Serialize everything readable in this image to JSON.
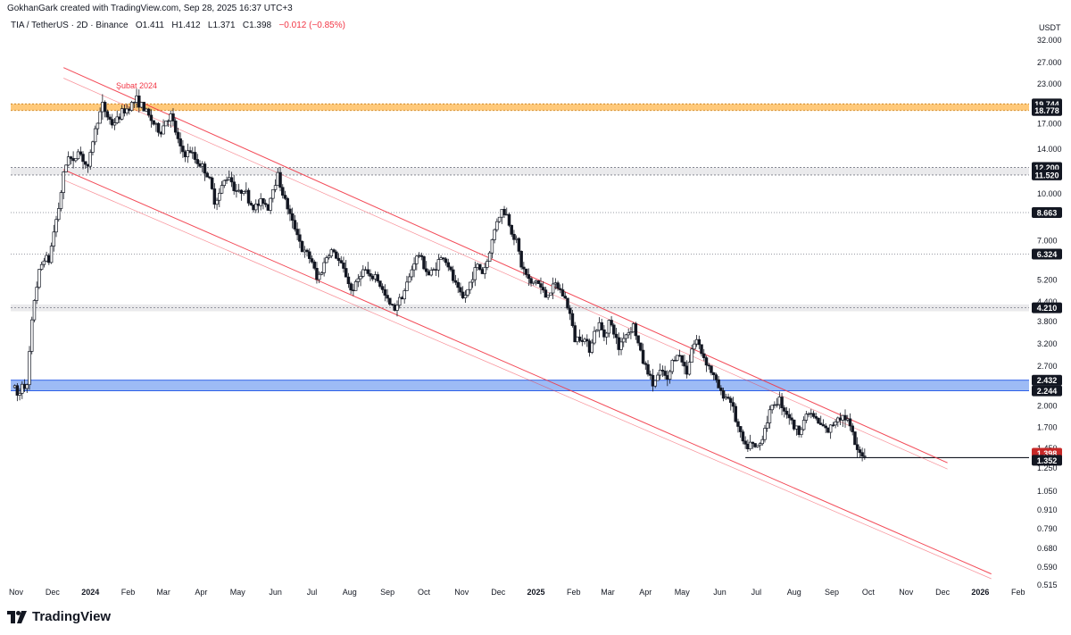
{
  "header": {
    "credit": "GokhanGark created with TradingView.com, Sep 28, 2025 16:37 UTC+3",
    "symbol_line": "TIA / TetherUS · 2D · Binance",
    "open_label": "O",
    "open": "1.411",
    "high_label": "H",
    "high": "1.412",
    "low_label": "L",
    "low": "1.371",
    "close_label": "C",
    "close": "1.398",
    "change": "−0.012 (−0.85%)",
    "change_color": "#f23645"
  },
  "footer": {
    "brand": "TradingView"
  },
  "colors": {
    "up": "#131722",
    "down": "#131722",
    "channel": "#f23645",
    "orange_zone": "#ffb74d",
    "blue_zone": "#5b8def",
    "grey_zone": "#d9d9dc",
    "last_price": "#c62828",
    "level_badge": "#131722"
  },
  "chart_data": {
    "type": "candlestick",
    "symbol": "TIA / TetherUS",
    "timeframe": "2D",
    "exchange": "Binance",
    "price_scale": "log",
    "y_unit": "USDT",
    "ylim": [
      0.515,
      32.0
    ],
    "xlim": [
      "2023-11-01",
      "2026-02-10"
    ],
    "y_ticks": [
      32.0,
      27.0,
      23.0,
      17.0,
      14.0,
      10.0,
      7.0,
      5.2,
      4.4,
      3.8,
      3.2,
      2.7,
      2.0,
      1.7,
      1.45,
      1.25,
      1.05,
      0.91,
      0.79,
      0.68,
      0.59,
      0.515
    ],
    "y_tick_labels": [
      "32.000",
      "27.000",
      "23.000",
      "17.000",
      "14.000",
      "10.000",
      "7.000",
      "5.200",
      "4.400",
      "3.800",
      "3.200",
      "2.700",
      "2.000",
      "1.700",
      "1.450",
      "1.250",
      "1.050",
      "0.910",
      "0.790",
      "0.680",
      "0.590",
      "0.515"
    ],
    "x_ticks": [
      {
        "date": "2023-11-01",
        "label": "Nov",
        "bold": false
      },
      {
        "date": "2023-12-01",
        "label": "Dec",
        "bold": false
      },
      {
        "date": "2024-01-01",
        "label": "2024",
        "bold": true
      },
      {
        "date": "2024-02-01",
        "label": "Feb",
        "bold": false
      },
      {
        "date": "2024-03-01",
        "label": "Mar",
        "bold": false
      },
      {
        "date": "2024-04-01",
        "label": "Apr",
        "bold": false
      },
      {
        "date": "2024-05-01",
        "label": "May",
        "bold": false
      },
      {
        "date": "2024-06-01",
        "label": "Jun",
        "bold": false
      },
      {
        "date": "2024-07-01",
        "label": "Jul",
        "bold": false
      },
      {
        "date": "2024-08-01",
        "label": "Aug",
        "bold": false
      },
      {
        "date": "2024-09-01",
        "label": "Sep",
        "bold": false
      },
      {
        "date": "2024-10-01",
        "label": "Oct",
        "bold": false
      },
      {
        "date": "2024-11-01",
        "label": "Nov",
        "bold": false
      },
      {
        "date": "2024-12-01",
        "label": "Dec",
        "bold": false
      },
      {
        "date": "2025-01-01",
        "label": "2025",
        "bold": true
      },
      {
        "date": "2025-02-01",
        "label": "Feb",
        "bold": false
      },
      {
        "date": "2025-03-01",
        "label": "Mar",
        "bold": false
      },
      {
        "date": "2025-04-01",
        "label": "Apr",
        "bold": false
      },
      {
        "date": "2025-05-01",
        "label": "May",
        "bold": false
      },
      {
        "date": "2025-06-01",
        "label": "Jun",
        "bold": false
      },
      {
        "date": "2025-07-01",
        "label": "Jul",
        "bold": false
      },
      {
        "date": "2025-08-01",
        "label": "Aug",
        "bold": false
      },
      {
        "date": "2025-09-01",
        "label": "Sep",
        "bold": false
      },
      {
        "date": "2025-10-01",
        "label": "Oct",
        "bold": false
      },
      {
        "date": "2025-11-01",
        "label": "Nov",
        "bold": false
      },
      {
        "date": "2025-12-01",
        "label": "Dec",
        "bold": false
      },
      {
        "date": "2026-01-01",
        "label": "2026",
        "bold": true
      },
      {
        "date": "2026-02-01",
        "label": "Feb",
        "bold": false
      }
    ],
    "path": [
      [
        "2023-10-31",
        2.3
      ],
      [
        "2023-11-03",
        2.1
      ],
      [
        "2023-11-06",
        2.4
      ],
      [
        "2023-11-10",
        2.3
      ],
      [
        "2023-11-13",
        3.4
      ],
      [
        "2023-11-16",
        4.5
      ],
      [
        "2023-11-20",
        5.5
      ],
      [
        "2023-11-24",
        6.2
      ],
      [
        "2023-11-28",
        6.0
      ],
      [
        "2023-12-02",
        7.5
      ],
      [
        "2023-12-06",
        9.0
      ],
      [
        "2023-12-10",
        11.5
      ],
      [
        "2023-12-14",
        13.5
      ],
      [
        "2023-12-18",
        12.5
      ],
      [
        "2023-12-22",
        14.0
      ],
      [
        "2023-12-26",
        13.0
      ],
      [
        "2023-12-30",
        12.0
      ],
      [
        "2024-01-03",
        15.0
      ],
      [
        "2024-01-07",
        17.5
      ],
      [
        "2024-01-11",
        19.5
      ],
      [
        "2024-01-15",
        18.0
      ],
      [
        "2024-01-19",
        17.0
      ],
      [
        "2024-01-23",
        17.5
      ],
      [
        "2024-01-27",
        18.5
      ],
      [
        "2024-01-31",
        19.0
      ],
      [
        "2024-02-04",
        19.8
      ],
      [
        "2024-02-08",
        20.4
      ],
      [
        "2024-02-12",
        19.5
      ],
      [
        "2024-02-16",
        18.5
      ],
      [
        "2024-02-20",
        17.5
      ],
      [
        "2024-02-24",
        16.5
      ],
      [
        "2024-02-28",
        16.0
      ],
      [
        "2024-03-03",
        17.5
      ],
      [
        "2024-03-07",
        18.0
      ],
      [
        "2024-03-11",
        16.0
      ],
      [
        "2024-03-15",
        14.0
      ],
      [
        "2024-03-19",
        13.5
      ],
      [
        "2024-03-23",
        13.8
      ],
      [
        "2024-03-27",
        13.0
      ],
      [
        "2024-03-31",
        12.5
      ],
      [
        "2024-04-04",
        12.0
      ],
      [
        "2024-04-08",
        11.0
      ],
      [
        "2024-04-12",
        9.5
      ],
      [
        "2024-04-16",
        10.0
      ],
      [
        "2024-04-20",
        11.0
      ],
      [
        "2024-04-24",
        11.5
      ],
      [
        "2024-04-28",
        10.5
      ],
      [
        "2024-05-02",
        10.0
      ],
      [
        "2024-05-06",
        10.5
      ],
      [
        "2024-05-10",
        9.5
      ],
      [
        "2024-05-14",
        9.0
      ],
      [
        "2024-05-18",
        9.2
      ],
      [
        "2024-05-22",
        9.5
      ],
      [
        "2024-05-26",
        9.0
      ],
      [
        "2024-05-30",
        10.5
      ],
      [
        "2024-06-03",
        11.5
      ],
      [
        "2024-06-07",
        10.0
      ],
      [
        "2024-06-11",
        9.0
      ],
      [
        "2024-06-15",
        8.0
      ],
      [
        "2024-06-19",
        7.5
      ],
      [
        "2024-06-23",
        6.5
      ],
      [
        "2024-06-27",
        6.3
      ],
      [
        "2024-07-01",
        6.0
      ],
      [
        "2024-07-05",
        5.2
      ],
      [
        "2024-07-09",
        5.6
      ],
      [
        "2024-07-13",
        6.2
      ],
      [
        "2024-07-17",
        6.5
      ],
      [
        "2024-07-21",
        6.2
      ],
      [
        "2024-07-25",
        5.8
      ],
      [
        "2024-07-29",
        5.4
      ],
      [
        "2024-08-02",
        4.8
      ],
      [
        "2024-08-06",
        5.0
      ],
      [
        "2024-08-10",
        5.5
      ],
      [
        "2024-08-14",
        5.6
      ],
      [
        "2024-08-18",
        5.2
      ],
      [
        "2024-08-22",
        5.4
      ],
      [
        "2024-08-26",
        5.0
      ],
      [
        "2024-08-30",
        4.6
      ],
      [
        "2024-09-03",
        4.3
      ],
      [
        "2024-09-07",
        4.2
      ],
      [
        "2024-09-11",
        4.5
      ],
      [
        "2024-09-15",
        4.8
      ],
      [
        "2024-09-19",
        5.3
      ],
      [
        "2024-09-23",
        6.0
      ],
      [
        "2024-09-27",
        6.3
      ],
      [
        "2024-10-01",
        5.8
      ],
      [
        "2024-10-05",
        5.4
      ],
      [
        "2024-10-09",
        5.6
      ],
      [
        "2024-10-13",
        6.0
      ],
      [
        "2024-10-17",
        6.2
      ],
      [
        "2024-10-21",
        5.8
      ],
      [
        "2024-10-25",
        5.2
      ],
      [
        "2024-10-29",
        4.8
      ],
      [
        "2024-11-02",
        4.5
      ],
      [
        "2024-11-06",
        4.8
      ],
      [
        "2024-11-10",
        5.4
      ],
      [
        "2024-11-14",
        5.8
      ],
      [
        "2024-11-18",
        5.5
      ],
      [
        "2024-11-22",
        6.0
      ],
      [
        "2024-11-26",
        7.0
      ],
      [
        "2024-11-30",
        8.2
      ],
      [
        "2024-12-04",
        8.8
      ],
      [
        "2024-12-08",
        8.5
      ],
      [
        "2024-12-12",
        7.5
      ],
      [
        "2024-12-16",
        7.0
      ],
      [
        "2024-12-20",
        5.8
      ],
      [
        "2024-12-24",
        5.4
      ],
      [
        "2024-12-28",
        5.0
      ],
      [
        "2025-01-01",
        5.2
      ],
      [
        "2025-01-05",
        4.9
      ],
      [
        "2025-01-09",
        4.6
      ],
      [
        "2025-01-13",
        4.8
      ],
      [
        "2025-01-17",
        5.0
      ],
      [
        "2025-01-21",
        4.8
      ],
      [
        "2025-01-25",
        4.5
      ],
      [
        "2025-01-29",
        4.0
      ],
      [
        "2025-02-02",
        3.3
      ],
      [
        "2025-02-06",
        3.4
      ],
      [
        "2025-02-10",
        3.3
      ],
      [
        "2025-02-14",
        3.1
      ],
      [
        "2025-02-18",
        3.5
      ],
      [
        "2025-02-22",
        3.7
      ],
      [
        "2025-02-26",
        3.4
      ],
      [
        "2025-03-02",
        3.8
      ],
      [
        "2025-03-06",
        3.5
      ],
      [
        "2025-03-10",
        3.1
      ],
      [
        "2025-03-14",
        3.4
      ],
      [
        "2025-03-18",
        3.5
      ],
      [
        "2025-03-22",
        3.7
      ],
      [
        "2025-03-26",
        3.2
      ],
      [
        "2025-03-30",
        2.8
      ],
      [
        "2025-04-03",
        2.6
      ],
      [
        "2025-04-07",
        2.35
      ],
      [
        "2025-04-11",
        2.5
      ],
      [
        "2025-04-15",
        2.6
      ],
      [
        "2025-04-19",
        2.4
      ],
      [
        "2025-04-23",
        2.8
      ],
      [
        "2025-04-27",
        3.0
      ],
      [
        "2025-05-01",
        2.8
      ],
      [
        "2025-05-05",
        2.6
      ],
      [
        "2025-05-09",
        3.1
      ],
      [
        "2025-05-13",
        3.3
      ],
      [
        "2025-05-17",
        3.0
      ],
      [
        "2025-05-21",
        2.8
      ],
      [
        "2025-05-25",
        2.6
      ],
      [
        "2025-05-29",
        2.4
      ],
      [
        "2025-06-02",
        2.2
      ],
      [
        "2025-06-06",
        2.15
      ],
      [
        "2025-06-10",
        2.1
      ],
      [
        "2025-06-14",
        1.8
      ],
      [
        "2025-06-18",
        1.6
      ],
      [
        "2025-06-22",
        1.45
      ],
      [
        "2025-06-26",
        1.5
      ],
      [
        "2025-06-30",
        1.45
      ],
      [
        "2025-07-04",
        1.5
      ],
      [
        "2025-07-08",
        1.7
      ],
      [
        "2025-07-12",
        1.9
      ],
      [
        "2025-07-16",
        2.05
      ],
      [
        "2025-07-20",
        2.1
      ],
      [
        "2025-07-24",
        1.95
      ],
      [
        "2025-07-28",
        1.85
      ],
      [
        "2025-08-01",
        1.7
      ],
      [
        "2025-08-05",
        1.65
      ],
      [
        "2025-08-09",
        1.8
      ],
      [
        "2025-08-13",
        1.9
      ],
      [
        "2025-08-17",
        1.85
      ],
      [
        "2025-08-21",
        1.75
      ],
      [
        "2025-08-25",
        1.7
      ],
      [
        "2025-08-29",
        1.65
      ],
      [
        "2025-09-02",
        1.75
      ],
      [
        "2025-09-06",
        1.85
      ],
      [
        "2025-09-10",
        1.85
      ],
      [
        "2025-09-14",
        1.8
      ],
      [
        "2025-09-18",
        1.6
      ],
      [
        "2025-09-22",
        1.4
      ],
      [
        "2025-09-26",
        1.39
      ],
      [
        "2025-09-28",
        1.398
      ]
    ],
    "levels": [
      {
        "price": 19.744,
        "label": "19.744",
        "style": "zone_top",
        "zone": "orange"
      },
      {
        "price": 18.778,
        "label": "18.778",
        "style": "zone_bottom",
        "zone": "orange"
      },
      {
        "price": 12.2,
        "label": "12.200",
        "style": "zone_top",
        "zone": "grey"
      },
      {
        "price": 11.52,
        "label": "11.520",
        "style": "zone_bottom",
        "zone": "grey"
      },
      {
        "price": 8.663,
        "label": "8.663",
        "style": "dotted"
      },
      {
        "price": 6.324,
        "label": "6.324",
        "style": "dotted"
      },
      {
        "price": 4.21,
        "label": "4.210",
        "style": "zone_single",
        "zone": "grey"
      },
      {
        "price": 2.432,
        "label": "2.432",
        "style": "zone_top",
        "zone": "blue"
      },
      {
        "price": 2.244,
        "label": "2.244",
        "style": "zone_bottom",
        "zone": "blue"
      }
    ],
    "zones": [
      {
        "name": "orange",
        "from": 18.778,
        "to": 19.744,
        "start": "2023-10-28"
      },
      {
        "name": "grey-upper",
        "from": 11.52,
        "to": 12.2,
        "start": "2023-10-28"
      },
      {
        "name": "grey-middle",
        "from": 4.1,
        "to": 4.32,
        "start": "2023-10-28"
      },
      {
        "name": "blue",
        "from": 2.244,
        "to": 2.432,
        "start": "2023-10-28"
      }
    ],
    "support_line": {
      "price": 1.352,
      "label": "1.352",
      "start": "2025-06-22"
    },
    "last_price": {
      "price": 1.398,
      "label": "1.398"
    },
    "channel": {
      "upper": [
        [
          "2023-12-10",
          26.0
        ],
        [
          "2025-12-05",
          1.3
        ]
      ],
      "upper_inner": [
        [
          "2023-12-10",
          24.0
        ],
        [
          "2025-12-05",
          1.24
        ]
      ],
      "lower": [
        [
          "2023-12-10",
          12.0
        ],
        [
          "2026-01-10",
          0.56
        ]
      ],
      "lower_inner": [
        [
          "2023-12-10",
          11.1
        ],
        [
          "2026-01-10",
          0.54
        ]
      ]
    },
    "annotation": {
      "text": "Şubat 2024",
      "date": "2024-02-08",
      "price": 22.2
    },
    "price_scale_label": "USDT"
  }
}
